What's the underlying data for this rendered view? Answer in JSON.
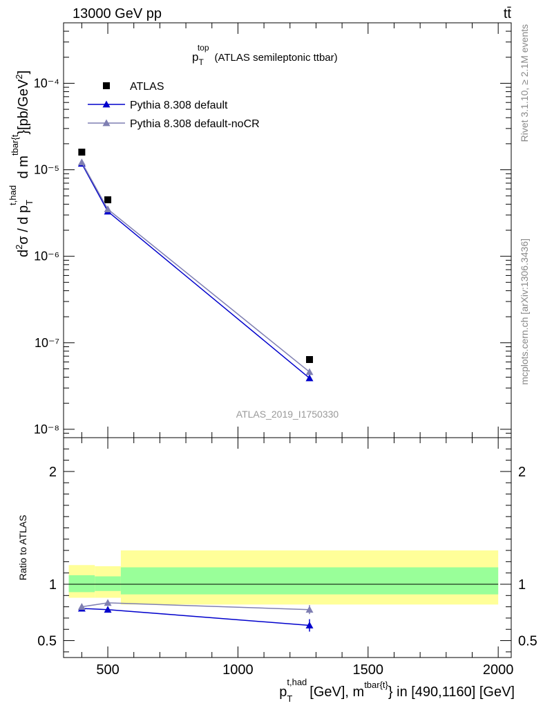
{
  "header": {
    "left": "13000 GeV pp",
    "right": "tt̄"
  },
  "side_labels": {
    "rivet": "Rivet 3.1.10, ≥ 2.1M events",
    "mcplots": "mcplots.cern.ch [arXiv:1306.3436]"
  },
  "watermark": "ATLAS_2019_I1750330",
  "chart_data": [
    {
      "type": "scatter",
      "title": {
        "main": "p",
        "sub": "T",
        "sup": "top",
        "rest": "(ATLAS semileptonic ttbar)"
      },
      "ylabel": "d²σ / d p_T^{t,had} d m^{tbar{t}}}[pb/GeV²]",
      "yscale": "log",
      "ylim": [
        8e-09,
        0.0005
      ],
      "xlim": [
        330,
        2050
      ],
      "ytick_labels": [
        "10⁻⁸",
        "10⁻⁷",
        "10⁻⁶",
        "10⁻⁵",
        "10⁻⁴"
      ],
      "legend_placement": "top-left",
      "series": [
        {
          "name": "ATLAS",
          "marker": "square",
          "color": "#000000",
          "x": [
            400,
            500,
            1275
          ],
          "y": [
            1.6e-05,
            4.5e-06,
            6.4e-08
          ]
        },
        {
          "name": "Pythia 8.308 default",
          "marker": "triangle",
          "color": "#0000cc",
          "x": [
            400,
            500,
            1275
          ],
          "y": [
            1.18e-05,
            3.3e-06,
            3.9e-08
          ]
        },
        {
          "name": "Pythia 8.308 default-noCR",
          "marker": "triangle",
          "color": "#7f7fb2",
          "x": [
            400,
            500,
            1275
          ],
          "y": [
            1.22e-05,
            3.5e-06,
            4.6e-08
          ]
        }
      ]
    },
    {
      "type": "line",
      "ylabel": "Ratio to ATLAS",
      "ylim": [
        0.35,
        2.3
      ],
      "xlim": [
        330,
        2050
      ],
      "xtick_labels": [
        "500",
        "1000",
        "1500",
        "2000"
      ],
      "ytick_labels": [
        "0.5",
        "1",
        "2"
      ],
      "xlabel": {
        "p": "p",
        "sub": "T",
        "sup": "t,had",
        "mid": "[GeV], m",
        "sup2": "tbar{t}",
        "rest": "} in [490,1160] [GeV]"
      },
      "bands": [
        {
          "x": [
            350,
            450
          ],
          "inner": [
            0.93,
            1.08
          ],
          "outer": [
            0.88,
            1.17
          ]
        },
        {
          "x": [
            450,
            550
          ],
          "inner": [
            0.94,
            1.07
          ],
          "outer": [
            0.88,
            1.16
          ]
        },
        {
          "x": [
            550,
            2000
          ],
          "inner": [
            0.91,
            1.15
          ],
          "outer": [
            0.82,
            1.3
          ]
        }
      ],
      "series": [
        {
          "name": "Pythia 8.308 default",
          "color": "#0000cc",
          "x": [
            400,
            500,
            1275
          ],
          "y": [
            0.785,
            0.775,
            0.635
          ],
          "err": [
            0.01,
            0.015,
            0.055
          ]
        },
        {
          "name": "Pythia 8.308 default-noCR",
          "color": "#7f7fb2",
          "x": [
            400,
            500,
            1275
          ],
          "y": [
            0.8,
            0.835,
            0.775
          ],
          "err": [
            0.01,
            0.02,
            0.04
          ]
        }
      ]
    }
  ]
}
